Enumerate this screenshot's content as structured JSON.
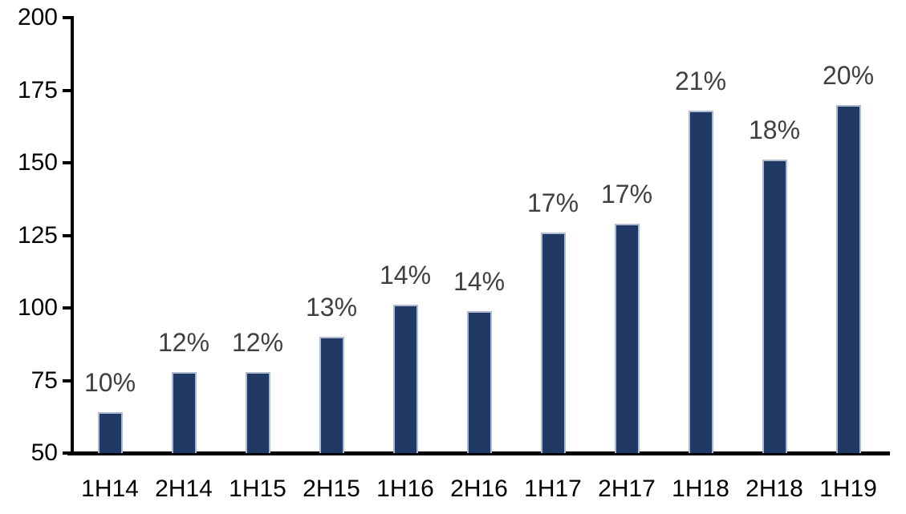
{
  "chart_data": {
    "type": "bar",
    "title": "",
    "xlabel": "",
    "ylabel": "",
    "categories": [
      "1H14",
      "2H14",
      "1H15",
      "2H15",
      "1H16",
      "2H16",
      "1H17",
      "2H17",
      "1H18",
      "2H18",
      "1H19"
    ],
    "series": [
      {
        "name": "value",
        "values": [
          64,
          78,
          78,
          90,
          101,
          99,
          126,
          129,
          168,
          151,
          170
        ],
        "data_labels": [
          "10%",
          "12%",
          "12%",
          "13%",
          "14%",
          "14%",
          "17%",
          "17%",
          "21%",
          "18%",
          "20%"
        ]
      }
    ],
    "ylim": [
      50,
      200
    ],
    "yticks": [
      50,
      75,
      100,
      125,
      150,
      175,
      200
    ],
    "grid": false,
    "legend": false,
    "colors": {
      "bar_fill": "#1f3864",
      "bar_border": "#aebacf",
      "data_label_text": "#404040",
      "axis_text": "#000000",
      "axis_line": "#000000",
      "background": "#ffffff"
    }
  }
}
